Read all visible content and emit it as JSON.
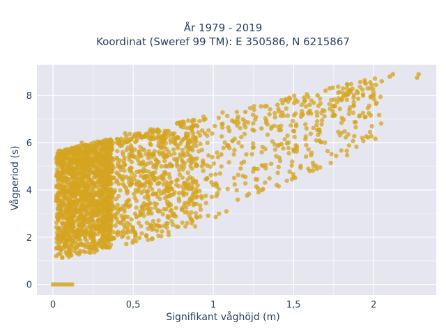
{
  "chart_data": {
    "type": "scatter",
    "title": "År 1979 - 2019",
    "subtitle": "Koordinat (Sweref 99 TM): E 350586, N 6215867",
    "xlabel": "Signifikant våghöjd (m)",
    "ylabel": "Vågperiod (s)",
    "xlim": [
      -0.1,
      2.39
    ],
    "ylim": [
      -0.45,
      9.3
    ],
    "xticks": [
      0,
      0.5,
      1,
      1.5,
      2
    ],
    "xtick_labels": [
      "0",
      "0,5",
      "1",
      "1,5",
      "2"
    ],
    "yticks": [
      0,
      2,
      4,
      6,
      8
    ],
    "ytick_labels": [
      "0",
      "2",
      "4",
      "6",
      "8"
    ],
    "grid": true,
    "marker_color": "#d4a420",
    "plot_background": "#e5e6ef",
    "series": [
      {
        "points": [
          [
            0.0,
            0.0
          ],
          [
            0.02,
            0.0
          ],
          [
            0.04,
            0.0
          ],
          [
            0.06,
            0.0
          ],
          [
            0.08,
            0.0
          ],
          [
            0.1,
            0.0
          ],
          [
            0.12,
            0.0
          ],
          [
            0.02,
            1.2
          ],
          [
            0.05,
            1.8
          ],
          [
            0.08,
            2.5
          ],
          [
            0.1,
            3.2
          ],
          [
            0.12,
            4.0
          ],
          [
            0.15,
            5.5
          ],
          [
            0.18,
            6.0
          ],
          [
            0.2,
            2.0
          ],
          [
            0.25,
            3.5
          ],
          [
            0.3,
            4.5
          ],
          [
            0.35,
            5.5
          ],
          [
            0.4,
            6.0
          ],
          [
            0.45,
            6.4
          ],
          [
            0.5,
            2.3
          ],
          [
            0.55,
            4.2
          ],
          [
            0.6,
            5.5
          ],
          [
            0.65,
            6.2
          ],
          [
            0.7,
            6.5
          ],
          [
            0.75,
            3.0
          ],
          [
            0.8,
            5.0
          ],
          [
            0.85,
            6.0
          ],
          [
            0.9,
            6.7
          ],
          [
            0.95,
            7.0
          ],
          [
            1.0,
            4.2
          ],
          [
            1.05,
            5.5
          ],
          [
            1.1,
            6.5
          ],
          [
            1.15,
            7.0
          ],
          [
            1.2,
            7.3
          ],
          [
            1.25,
            5.8
          ],
          [
            1.3,
            6.6
          ],
          [
            1.35,
            7.2
          ],
          [
            1.4,
            7.6
          ],
          [
            1.45,
            7.8
          ],
          [
            1.5,
            6.5
          ],
          [
            1.55,
            7.2
          ],
          [
            1.6,
            7.6
          ],
          [
            1.65,
            8.0
          ],
          [
            1.7,
            8.2
          ],
          [
            1.75,
            7.2
          ],
          [
            1.8,
            7.8
          ],
          [
            1.85,
            8.2
          ],
          [
            1.9,
            8.1
          ],
          [
            1.95,
            8.5
          ],
          [
            2.0,
            8.0
          ],
          [
            2.05,
            8.6
          ],
          [
            2.1,
            8.8
          ],
          [
            2.12,
            8.9
          ],
          [
            2.27,
            8.75
          ],
          [
            2.28,
            8.9
          ]
        ]
      }
    ]
  }
}
